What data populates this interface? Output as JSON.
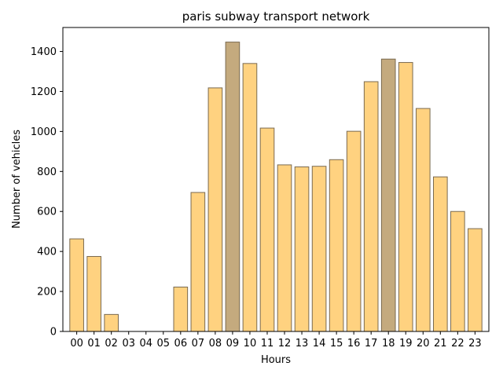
{
  "chart_data": {
    "type": "bar",
    "title": "paris subway transport network",
    "xlabel": "Hours",
    "ylabel": "Number of vehicles",
    "categories": [
      "00",
      "01",
      "02",
      "03",
      "04",
      "05",
      "06",
      "07",
      "08",
      "09",
      "10",
      "11",
      "12",
      "13",
      "14",
      "15",
      "16",
      "17",
      "18",
      "19",
      "20",
      "21",
      "22",
      "23"
    ],
    "values": [
      463,
      375,
      85,
      0,
      0,
      0,
      222,
      695,
      1218,
      1447,
      1340,
      1017,
      833,
      823,
      826,
      859,
      1001,
      1249,
      1362,
      1345,
      1115,
      773,
      600,
      514
    ],
    "highlighted_categories": [
      "09",
      "18"
    ],
    "ylim": [
      0,
      1520
    ],
    "yticks": [
      0,
      200,
      400,
      600,
      800,
      1000,
      1200,
      1400
    ],
    "grid": false,
    "colors": {
      "bar": "#ffd280",
      "bar_highlight": "#c4aa7e",
      "bar_edge": "#7a6a50",
      "axis": "#000000"
    }
  }
}
